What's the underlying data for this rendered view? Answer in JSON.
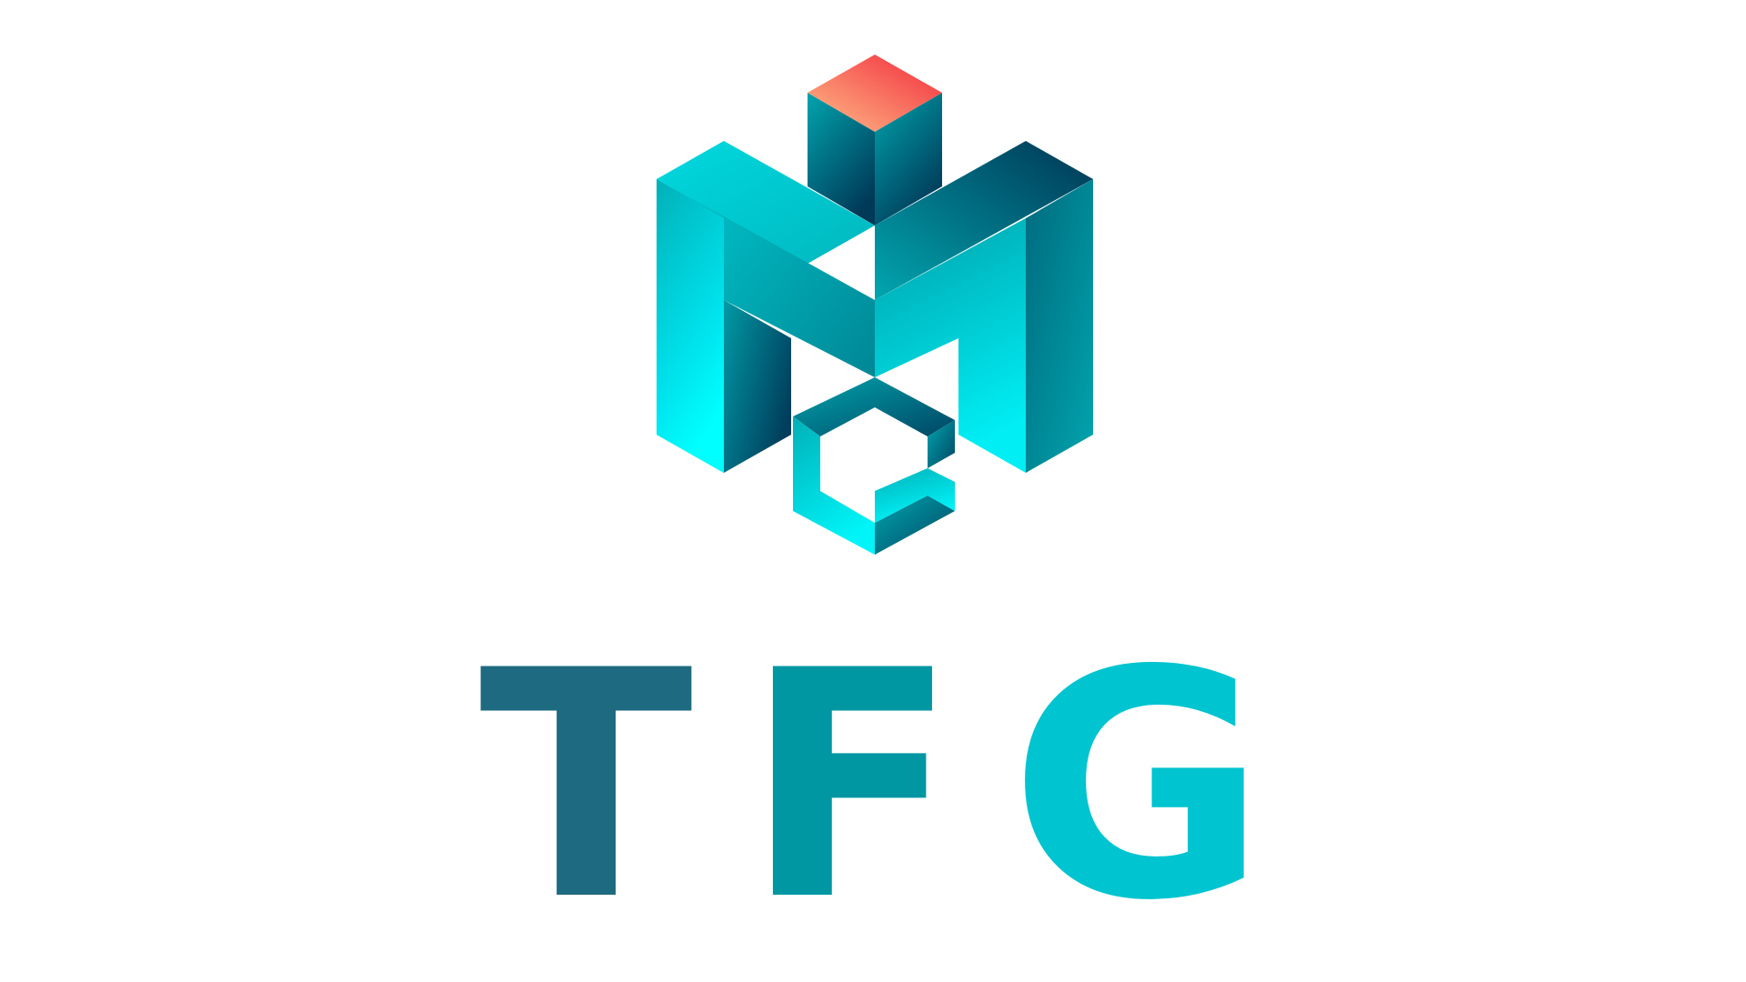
{
  "logo": {
    "emblem_icon": "isometric-m-c-cube-icon",
    "wordmark": {
      "letters": [
        "T",
        "F",
        "G"
      ]
    },
    "colors": {
      "letter_t": "#1e6a80",
      "letter_f": "#0097a3",
      "letter_g": "#00c4cf",
      "cube_top_red": "#f2293a",
      "cube_top_peach": "#ffbf8a",
      "teal_light": "#00ffff",
      "teal_mid": "#01a5ae",
      "teal_dark": "#003654"
    }
  }
}
